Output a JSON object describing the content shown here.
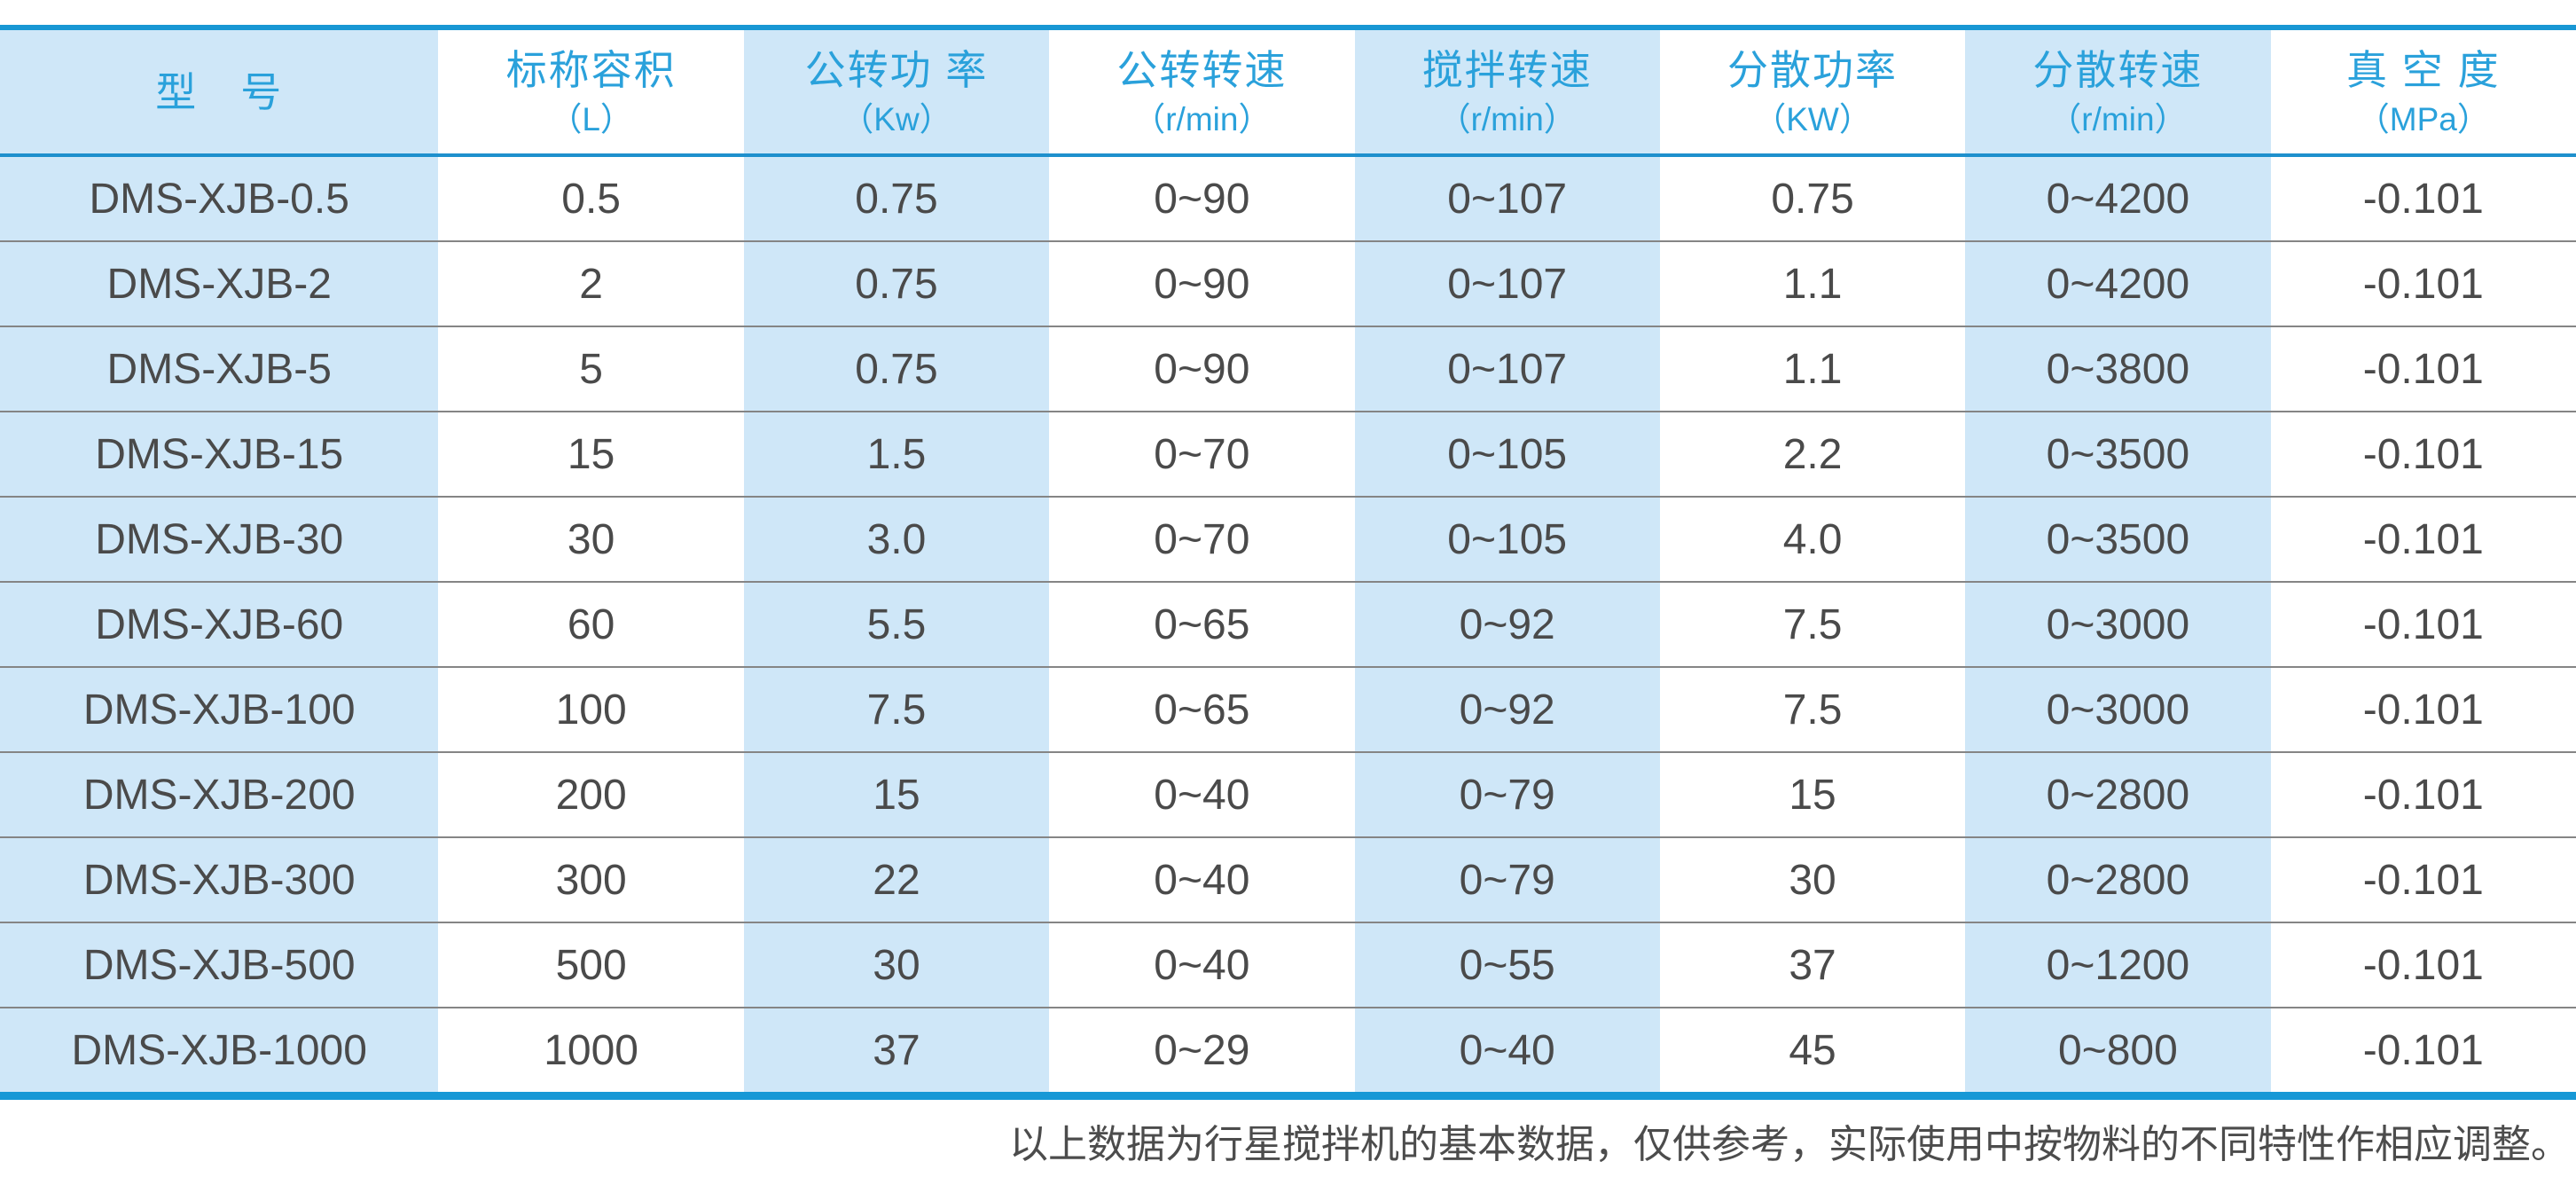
{
  "table": {
    "columns": [
      {
        "title": "型　号",
        "unit": ""
      },
      {
        "title": "标称容积",
        "unit": "（L）"
      },
      {
        "title": "公转功 率",
        "unit": "（Kw）"
      },
      {
        "title": "公转转速",
        "unit": "（r/min）"
      },
      {
        "title": "搅拌转速",
        "unit": "（r/min）"
      },
      {
        "title": "分散功率",
        "unit": "（KW）"
      },
      {
        "title": "分散转速",
        "unit": "（r/min）"
      },
      {
        "title": "真 空 度",
        "unit": "（MPa）"
      }
    ],
    "rows": [
      {
        "cells": [
          "DMS-XJB-0.5",
          "0.5",
          "0.75",
          "0~90",
          "0~107",
          "0.75",
          "0~4200",
          "-0.101"
        ]
      },
      {
        "cells": [
          "DMS-XJB-2",
          "2",
          "0.75",
          "0~90",
          "0~107",
          "1.1",
          "0~4200",
          "-0.101"
        ]
      },
      {
        "cells": [
          "DMS-XJB-5",
          "5",
          "0.75",
          "0~90",
          "0~107",
          "1.1",
          "0~3800",
          "-0.101"
        ]
      },
      {
        "cells": [
          "DMS-XJB-15",
          "15",
          "1.5",
          "0~70",
          "0~105",
          "2.2",
          "0~3500",
          "-0.101"
        ]
      },
      {
        "cells": [
          "DMS-XJB-30",
          "30",
          "3.0",
          "0~70",
          "0~105",
          "4.0",
          "0~3500",
          "-0.101"
        ]
      },
      {
        "cells": [
          "DMS-XJB-60",
          "60",
          "5.5",
          "0~65",
          "0~92",
          "7.5",
          "0~3000",
          "-0.101"
        ]
      },
      {
        "cells": [
          "DMS-XJB-100",
          "100",
          "7.5",
          "0~65",
          "0~92",
          "7.5",
          "0~3000",
          "-0.101"
        ]
      },
      {
        "cells": [
          "DMS-XJB-200",
          "200",
          "15",
          "0~40",
          "0~79",
          "15",
          "0~2800",
          "-0.101"
        ]
      },
      {
        "cells": [
          "DMS-XJB-300",
          "300",
          "22",
          "0~40",
          "0~79",
          "30",
          "0~2800",
          "-0.101"
        ]
      },
      {
        "cells": [
          "DMS-XJB-500",
          "500",
          "30",
          "0~40",
          "0~55",
          "37",
          "0~1200",
          "-0.101"
        ]
      },
      {
        "cells": [
          "DMS-XJB-1000",
          "1000",
          "37",
          "0~29",
          "0~40",
          "45",
          "0~800",
          "-0.101"
        ]
      }
    ]
  },
  "footer": {
    "note": "以上数据为行星搅拌机的基本数据，仅供参考，实际使用中按物料的不同特性作相应调整。"
  },
  "colors": {
    "column_tint": "#cfe7f8",
    "header_text": "#2aa1db",
    "rule_blue": "#1897d4",
    "row_divider": "#858585",
    "body_text": "#4a4a4a"
  }
}
